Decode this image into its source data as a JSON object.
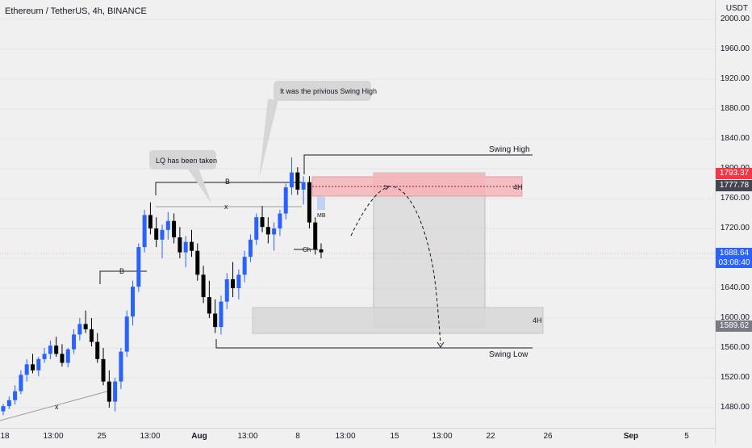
{
  "header": {
    "title": "Ethereum / TetherUS, 4h, BINANCE"
  },
  "price_axis": {
    "unit": "USDT"
  },
  "price_tags": {
    "upper": "1793.37",
    "level": "1777.78",
    "current": "1688.64",
    "countdown": "03:08:40",
    "lower": "1589.62"
  },
  "annotations": {
    "callout_1": "It was the privious Swing High",
    "callout_2": "LQ has been taken",
    "swing_high": "Swing High",
    "swing_low": "Swing Low",
    "zone_upper": "4H",
    "zone_lower": "4H",
    "b1": "B",
    "b2": "B",
    "x1": "x",
    "x2": "x",
    "mb": "MB",
    "ch": "Ch"
  },
  "colors": {
    "bull": "#2962ff",
    "bear": "#000000",
    "upper_zone": "#f4b6bb",
    "tag_red": "#f23645",
    "tag_dark": "#434651",
    "tag_grey": "#787b86",
    "tag_blue": "#2962ff"
  },
  "chart_data": {
    "type": "candlestick",
    "title": "Ethereum / TetherUS, 4h, BINANCE",
    "y_axis": {
      "ticks": [
        1480,
        1520,
        1560,
        1600,
        1640,
        1680,
        1720,
        1760,
        1800,
        1840,
        1880,
        1920,
        1960,
        2000
      ],
      "range": [
        1465,
        2010
      ]
    },
    "x_axis": {
      "tick_labels": [
        "18",
        "13:00",
        "25",
        "13:00",
        "Aug",
        "13:00",
        "8",
        "13:00",
        "15",
        "13:00",
        "22",
        "26",
        "Sep",
        "5"
      ]
    },
    "candles_approx": [
      [
        1475,
        1485,
        1470,
        1482
      ],
      [
        1482,
        1495,
        1478,
        1490
      ],
      [
        1490,
        1510,
        1484,
        1502
      ],
      [
        1502,
        1530,
        1498,
        1524
      ],
      [
        1524,
        1545,
        1515,
        1538
      ],
      [
        1538,
        1552,
        1526,
        1530
      ],
      [
        1530,
        1548,
        1522,
        1545
      ],
      [
        1545,
        1560,
        1540,
        1552
      ],
      [
        1552,
        1570,
        1545,
        1563
      ],
      [
        1563,
        1575,
        1548,
        1552
      ],
      [
        1552,
        1565,
        1535,
        1540
      ],
      [
        1540,
        1560,
        1534,
        1558
      ],
      [
        1558,
        1585,
        1552,
        1578
      ],
      [
        1578,
        1600,
        1570,
        1592
      ],
      [
        1592,
        1610,
        1580,
        1585
      ],
      [
        1585,
        1600,
        1562,
        1568
      ],
      [
        1568,
        1580,
        1540,
        1545
      ],
      [
        1545,
        1560,
        1510,
        1515
      ],
      [
        1515,
        1530,
        1480,
        1488
      ],
      [
        1488,
        1520,
        1475,
        1515
      ],
      [
        1515,
        1560,
        1505,
        1555
      ],
      [
        1555,
        1610,
        1548,
        1602
      ],
      [
        1602,
        1650,
        1590,
        1642
      ],
      [
        1642,
        1700,
        1635,
        1695
      ],
      [
        1695,
        1745,
        1688,
        1738
      ],
      [
        1738,
        1755,
        1712,
        1720
      ],
      [
        1720,
        1735,
        1695,
        1705
      ],
      [
        1705,
        1725,
        1680,
        1718
      ],
      [
        1718,
        1742,
        1705,
        1730
      ],
      [
        1730,
        1740,
        1700,
        1708
      ],
      [
        1708,
        1722,
        1680,
        1688
      ],
      [
        1688,
        1710,
        1668,
        1702
      ],
      [
        1702,
        1718,
        1682,
        1690
      ],
      [
        1690,
        1700,
        1650,
        1658
      ],
      [
        1658,
        1670,
        1620,
        1628
      ],
      [
        1628,
        1650,
        1600,
        1606
      ],
      [
        1606,
        1625,
        1580,
        1588
      ],
      [
        1588,
        1630,
        1578,
        1622
      ],
      [
        1622,
        1660,
        1612,
        1652
      ],
      [
        1652,
        1675,
        1628,
        1640
      ],
      [
        1640,
        1665,
        1625,
        1658
      ],
      [
        1658,
        1690,
        1648,
        1682
      ],
      [
        1682,
        1712,
        1675,
        1705
      ],
      [
        1705,
        1740,
        1698,
        1735
      ],
      [
        1735,
        1750,
        1715,
        1722
      ],
      [
        1722,
        1735,
        1700,
        1712
      ],
      [
        1712,
        1728,
        1690,
        1720
      ],
      [
        1720,
        1745,
        1710,
        1740
      ],
      [
        1740,
        1780,
        1732,
        1775
      ],
      [
        1775,
        1815,
        1765,
        1795
      ],
      [
        1795,
        1802,
        1765,
        1772
      ],
      [
        1772,
        1790,
        1752,
        1782
      ],
      [
        1782,
        1790,
        1720,
        1728
      ],
      [
        1728,
        1735,
        1685,
        1692
      ],
      [
        1692,
        1700,
        1680,
        1688
      ]
    ],
    "levels": {
      "swing_high": 1815,
      "swing_low": 1562,
      "previous_high": 1800,
      "liquidity": 1750,
      "b_level": 1680
    },
    "zones": {
      "upper": [
        1765,
        1800
      ],
      "lower": [
        1590,
        1612
      ],
      "projection": [
        1593,
        1803
      ]
    },
    "legend": "none"
  }
}
